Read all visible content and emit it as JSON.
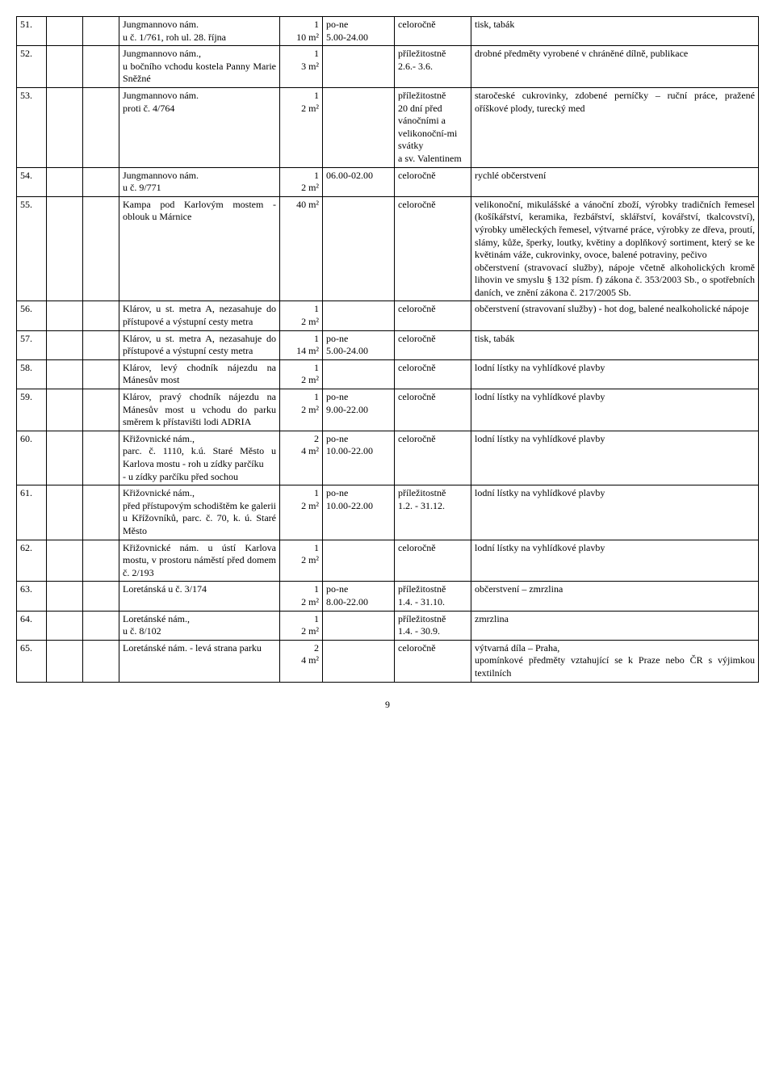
{
  "rows": [
    {
      "num": "51.",
      "loc": "Jungmannovo nám.\nu č. 1/761, roh ul. 28. října",
      "qty": "1\n10 m²",
      "time": "po-ne\n5.00-24.00",
      "period": "celoročně",
      "desc": "tisk, tabák"
    },
    {
      "num": "52.",
      "loc": "Jungmannovo nám.,\nu bočního vchodu kostela Panny Marie Sněžné",
      "qty": "1\n3 m²",
      "time": "",
      "period": "příležitostně\n2.6.- 3.6.",
      "desc": "drobné předměty vyrobené v chráněné dílně, publikace"
    },
    {
      "num": "53.",
      "loc": "Jungmannovo nám.\nproti č. 4/764",
      "qty": "1\n2  m²",
      "time": "",
      "period": "příležitostně\n20 dní před vánočními a velikonoční-mi svátky\na sv. Valentinem",
      "desc": "staročeské cukrovinky, zdobené perníčky – ruční práce, pražené oříškové plody, turecký med"
    },
    {
      "num": "54.",
      "loc": "Jungmannovo nám.\nu č. 9/771",
      "qty": "1\n2 m²",
      "time": "06.00-02.00",
      "period": "celoročně",
      "desc": "rychlé občerstvení"
    },
    {
      "num": "55.",
      "loc": "Kampa pod Karlovým mostem - oblouk u Márnice",
      "qty": "40 m²",
      "time": "",
      "period": "celoročně",
      "desc": "velikonoční, mikulášské a vánoční zboží, výrobky tradičních řemesel (košíkářství, keramika, řezbářství, sklářství, kovářství, tkalcovství), výrobky uměleckých řemesel, výtvarné práce, výrobky ze dřeva, proutí, slámy, kůže, šperky, loutky, květiny a doplňkový sortiment, který se ke květinám váže, cukrovinky, ovoce, balené potraviny, pečivo\nobčerstvení (stravovací služby), nápoje včetně alkoholických kromě lihovin ve smyslu § 132 písm. f) zákona č. 353/2003 Sb., o spotřebních daních, ve znění zákona č. 217/2005 Sb."
    },
    {
      "num": "56.",
      "loc": "Klárov, u st. metra A, nezasahuje do přístupové a výstupní cesty metra",
      "qty": "1\n2 m²",
      "time": "",
      "period": "celoročně",
      "desc": "občerstvení (stravovaní služby) - hot dog, balené nealkoholické nápoje"
    },
    {
      "num": "57.",
      "loc": "Klárov, u st. metra A, nezasahuje do přístupové a výstupní cesty metra",
      "qty": "1\n14 m²",
      "time": "po-ne\n5.00-24.00",
      "period": "celoročně",
      "desc": "tisk, tabák"
    },
    {
      "num": "58.",
      "loc": "Klárov, levý chodník nájezdu na Mánesův most",
      "qty": "1\n2 m²",
      "time": "",
      "period": "celoročně",
      "desc": "lodní lístky na vyhlídkové plavby"
    },
    {
      "num": "59.",
      "loc": "Klárov, pravý chodník nájezdu na Mánesův most u vchodu do parku směrem k přístavišti lodi ADRIA",
      "qty": "1\n2 m²",
      "time": "po-ne\n9.00-22.00",
      "period": "celoročně",
      "desc": "lodní lístky na vyhlídkové plavby"
    },
    {
      "num": "60.",
      "loc": "Křižovnické nám.,\nparc. č. 1110, k.ú. Staré Město u Karlova mostu - roh u zídky parčíku\n- u zídky parčíku před sochou",
      "qty": "2\n4 m²",
      "time": "po-ne\n10.00-22.00",
      "period": "celoročně",
      "desc": "lodní lístky na vyhlídkové plavby"
    },
    {
      "num": "61.",
      "loc": "Křižovnické nám.,\npřed přístupovým schodištěm ke galerii u Křížovníků, parc. č. 70, k. ú. Staré Město",
      "qty": "1\n2 m²",
      "time": "po-ne\n10.00-22.00",
      "period": "příležitostně\n1.2. - 31.12.",
      "desc": "lodní lístky na vyhlídkové plavby"
    },
    {
      "num": "62.",
      "loc": "Křižovnické nám. u ústí Karlova mostu, v prostoru náměstí před domem č. 2/193",
      "qty": "1\n2 m²",
      "time": "",
      "period": "celoročně",
      "desc": "lodní lístky na vyhlídkové plavby"
    },
    {
      "num": "63.",
      "loc": "Loretánská u č. 3/174",
      "qty": "1\n2 m²",
      "time": "po-ne\n8.00-22.00",
      "period": "příležitostně\n1.4. - 31.10.",
      "desc": "občerstvení – zmrzlina"
    },
    {
      "num": "64.",
      "loc": "Loretánské nám.,\nu č. 8/102",
      "qty": "1\n2 m²",
      "time": "",
      "period": "příležitostně\n1.4. - 30.9.",
      "desc": "zmrzlina"
    },
    {
      "num": "65.",
      "loc": "Loretánské nám. - levá strana parku",
      "qty": "2\n4 m²",
      "time": "",
      "period": "celoročně",
      "desc": "výtvarná díla – Praha,\nupomínkové předměty vztahující se k Praze nebo ČR s výjimkou textilních"
    }
  ],
  "pageNumber": "9"
}
